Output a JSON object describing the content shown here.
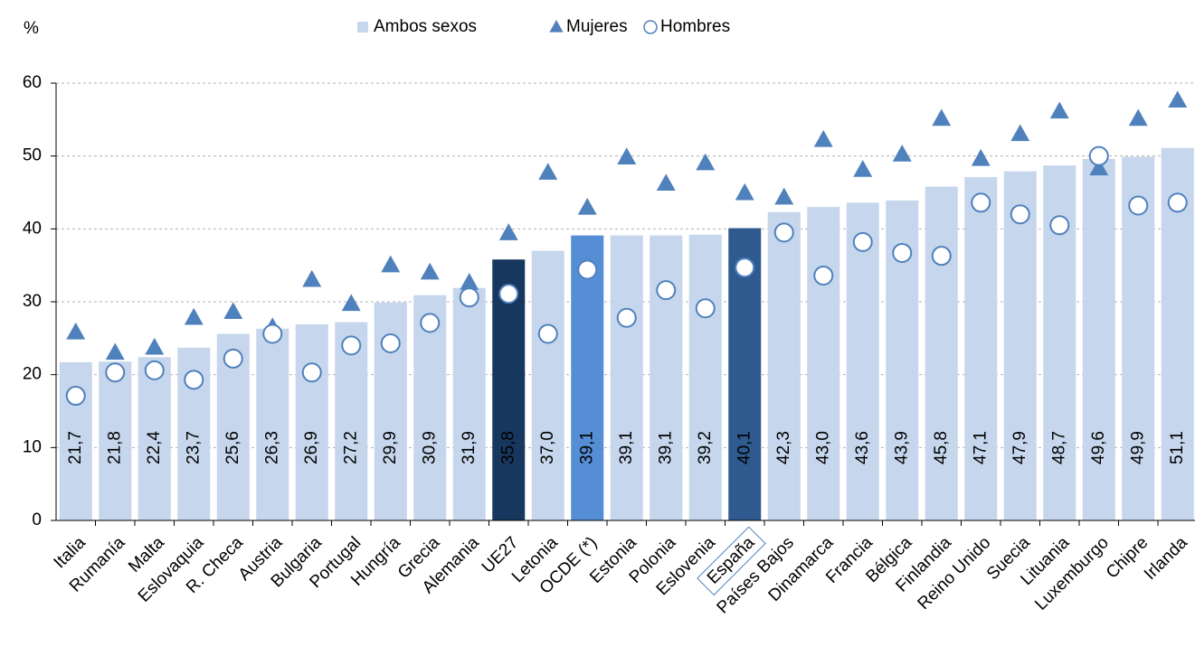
{
  "chart_data": {
    "type": "bar",
    "y_unit_label": "%",
    "categories": [
      "Italia",
      "Rumanía",
      "Malta",
      "Eslovaquia",
      "R. Checa",
      "Austria",
      "Bulgaria",
      "Portugal",
      "Hungría",
      "Grecia",
      "Alemania",
      "UE27",
      "Letonia",
      "OCDE (*)",
      "Estonia",
      "Polonia",
      "Eslovenia",
      "España",
      "Países Bajos",
      "Dinamarca",
      "Francia",
      "Bélgica",
      "Finlandia",
      "Reino Unido",
      "Suecia",
      "Lituania",
      "Luxemburgo",
      "Chipre",
      "Irlanda"
    ],
    "series": [
      {
        "name": "Ambos sexos",
        "marker": "bar",
        "color": "#c6d6ec",
        "bar_colors": [
          "#c6d6ec",
          "#c6d6ec",
          "#c6d6ec",
          "#c6d6ec",
          "#c6d6ec",
          "#c6d6ec",
          "#c6d6ec",
          "#c6d6ec",
          "#c6d6ec",
          "#c6d6ec",
          "#c6d6ec",
          "#17375e",
          "#c6d6ec",
          "#558ed5",
          "#c6d6ec",
          "#c6d6ec",
          "#c6d6ec",
          "#2f5a8f",
          "#c6d6ec",
          "#c6d6ec",
          "#c6d6ec",
          "#c6d6ec",
          "#c6d6ec",
          "#c6d6ec",
          "#c6d6ec",
          "#c6d6ec",
          "#c6d6ec",
          "#c6d6ec",
          "#c6d6ec"
        ],
        "values": [
          21.7,
          21.8,
          22.4,
          23.7,
          25.6,
          26.3,
          26.9,
          27.2,
          29.9,
          30.9,
          31.9,
          35.8,
          37.0,
          39.1,
          39.1,
          39.1,
          39.2,
          40.1,
          42.3,
          43.0,
          43.6,
          43.9,
          45.8,
          47.1,
          47.9,
          48.7,
          49.6,
          49.9,
          51.1
        ],
        "value_labels": [
          "21,7",
          "21,8",
          "22,4",
          "23,7",
          "25,6",
          "26,3",
          "26,9",
          "27,2",
          "29,9",
          "30,9",
          "31,9",
          "35,8",
          "37,0",
          "39,1",
          "39,1",
          "39,1",
          "39,2",
          "40,1",
          "42,3",
          "43,0",
          "43,6",
          "43,9",
          "45,8",
          "47,1",
          "47,9",
          "48,7",
          "49,6",
          "49,9",
          "51,1"
        ]
      },
      {
        "name": "Mujeres",
        "marker": "triangle",
        "color": "#4f81bd",
        "values": [
          25.8,
          23,
          23.7,
          27.8,
          28.6,
          26.5,
          33,
          29.7,
          35,
          34,
          32.6,
          39.4,
          47.7,
          42.9,
          49.8,
          46.2,
          49,
          44.9,
          44.3,
          52.2,
          48.1,
          50.2,
          55.1,
          49.6,
          53,
          56.1,
          48.3,
          55.1,
          57.6
        ]
      },
      {
        "name": "Hombres",
        "marker": "circle",
        "color": "#4f81bd",
        "values": [
          17.1,
          20.3,
          20.6,
          19.3,
          22.2,
          25.6,
          20.3,
          24,
          24.3,
          27.1,
          30.6,
          31.1,
          25.6,
          34.4,
          27.8,
          31.6,
          29.1,
          34.7,
          39.5,
          33.6,
          38.2,
          36.7,
          36.3,
          43.6,
          42,
          40.5,
          50,
          43.2,
          43.6
        ]
      }
    ],
    "boxed_category_index": 17,
    "ylim": [
      0,
      60
    ],
    "yticks": [
      0,
      10,
      20,
      30,
      40,
      50,
      60
    ],
    "grid": true
  }
}
